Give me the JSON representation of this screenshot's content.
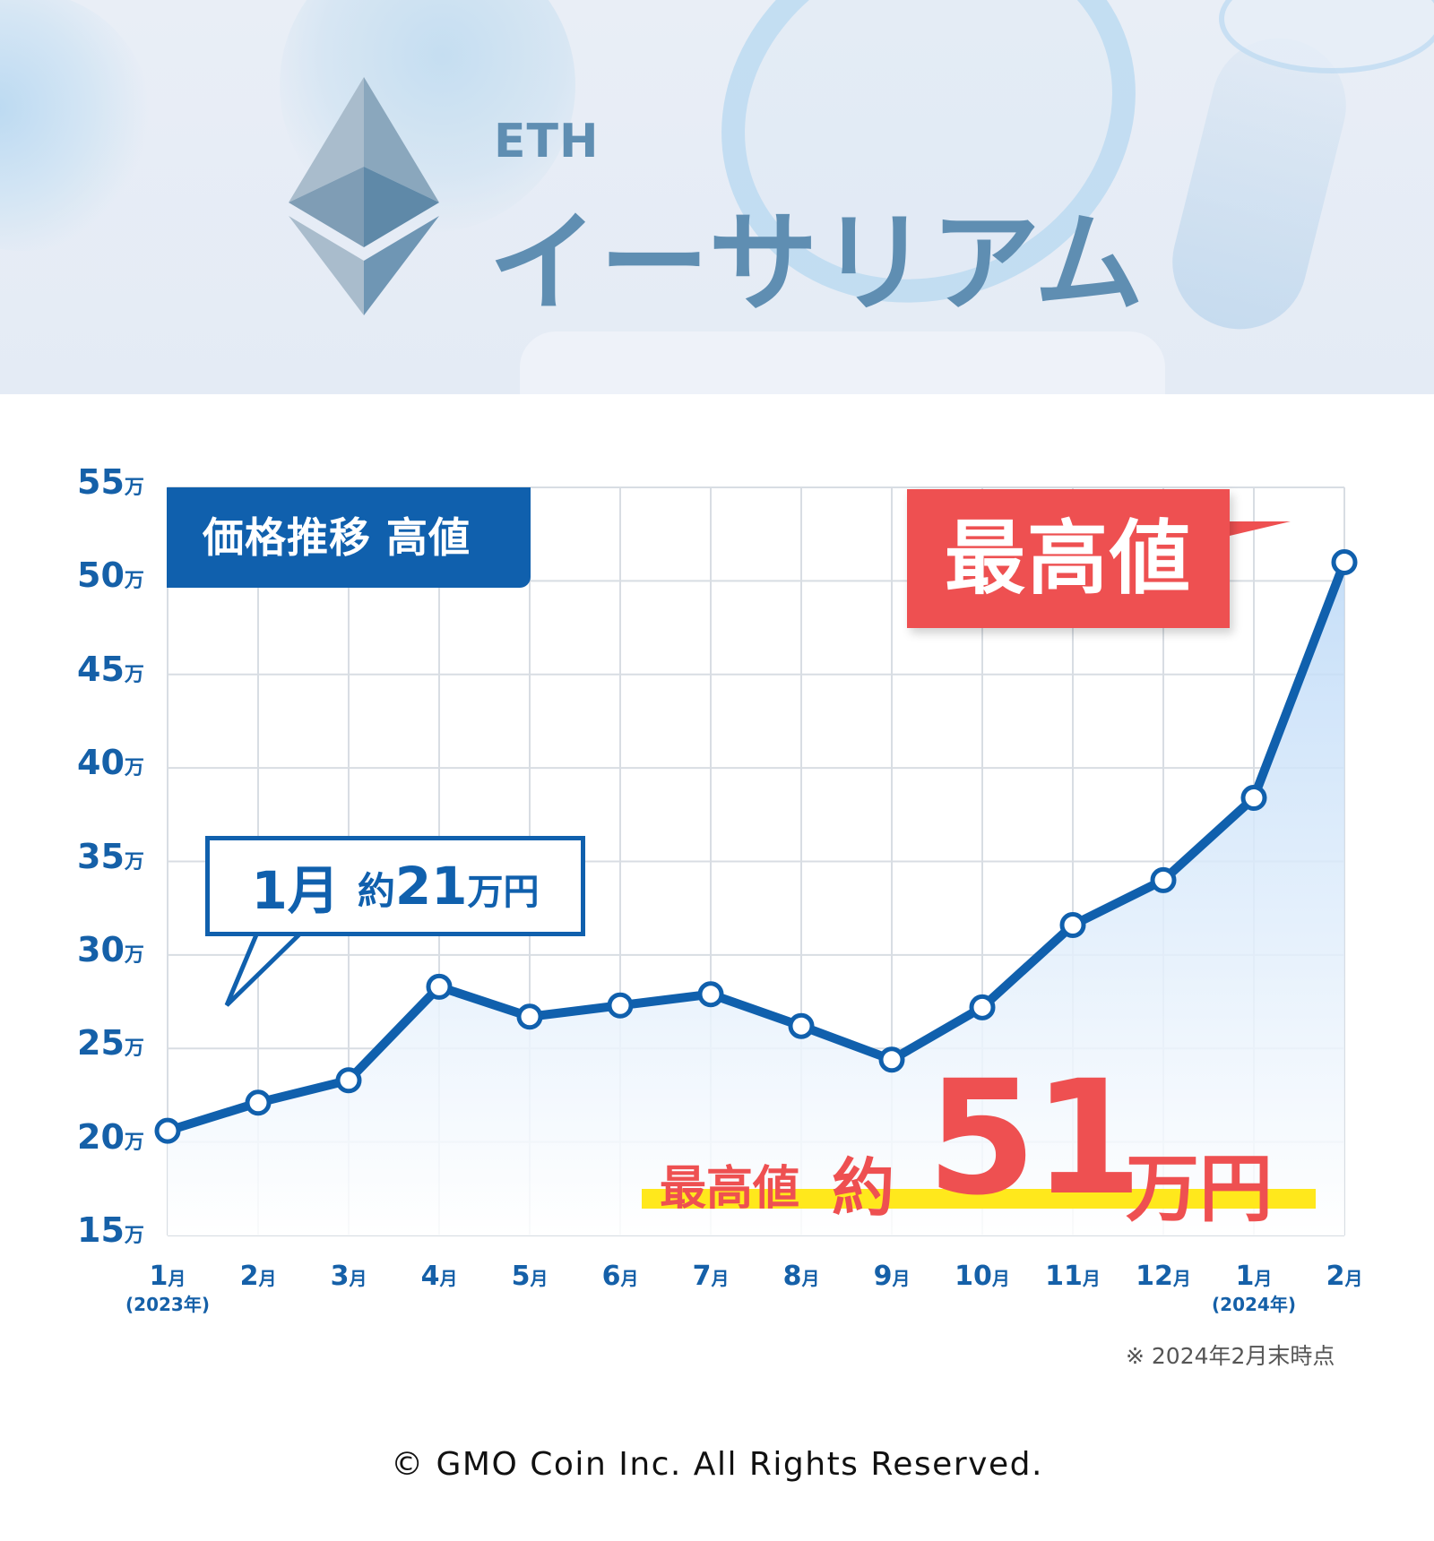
{
  "header": {
    "subtitle": "ETH",
    "title": "イーサリアム",
    "colors": {
      "title": "#5f8eb2"
    }
  },
  "chart_data": {
    "type": "line",
    "title": "価格推移 高値",
    "categories": [
      "1月",
      "2月",
      "3月",
      "4月",
      "5月",
      "6月",
      "7月",
      "8月",
      "9月",
      "10月",
      "11月",
      "12月",
      "1月",
      "2月"
    ],
    "category_sublabels": [
      "(2023年)",
      "",
      "",
      "",
      "",
      "",
      "",
      "",
      "",
      "",
      "",
      "",
      "(2024年)",
      ""
    ],
    "series": [
      {
        "values": [
          20.6,
          22.1,
          23.3,
          28.3,
          26.7,
          27.3,
          27.9,
          26.2,
          24.4,
          27.2,
          31.6,
          34.0,
          38.4,
          51.0
        ]
      }
    ],
    "y_ticks": [
      15,
      20,
      25,
      30,
      35,
      40,
      45,
      50,
      55
    ],
    "y_tick_unit": "万",
    "ylim": [
      15,
      55
    ],
    "grid": true,
    "colors": {
      "line": "#1060ad",
      "fill": "#cfe4fa",
      "highlight": "#ee5051",
      "marker": "#ffffff"
    }
  },
  "labels": {
    "chart_tag": "価格推移  高値",
    "start_month": "1月",
    "start_approx": "約",
    "start_value": "21",
    "start_unit": "万円",
    "peak_tag": "最高値",
    "peak_prefix": "最高値",
    "peak_approx": "約",
    "peak_value": "51",
    "peak_unit": "万円",
    "footnote": "※ 2024年2月末時点"
  },
  "footer": {
    "copyright": "© GMO Coin Inc. All Rights Reserved."
  }
}
